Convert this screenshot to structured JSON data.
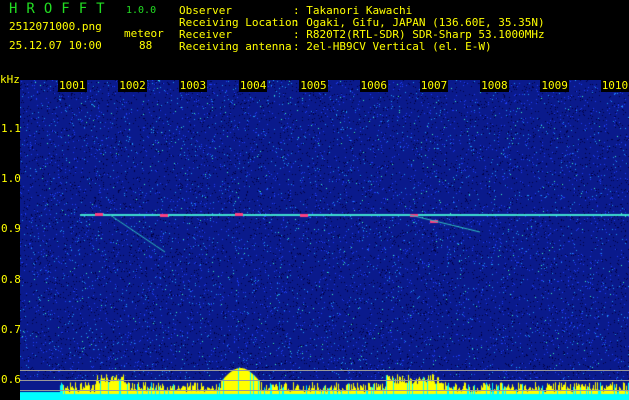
{
  "app": {
    "title": "HROFFT",
    "version": "1.0.0"
  },
  "file": {
    "name": "2512071000.png",
    "datetime": "25.12.07 10:00"
  },
  "meteor": {
    "label": "meteor",
    "count": "88"
  },
  "info": [
    {
      "label": "Observer",
      "value": ": Takanori Kawachi"
    },
    {
      "label": "Receiving Location",
      "value": ": Ogaki, Gifu, JAPAN (136.60E, 35.35N)"
    },
    {
      "label": "Receiver",
      "value": ": R820T2(RTL-SDR) SDR-Sharp 53.1000MHz"
    },
    {
      "label": "Receiving antenna",
      "value": ": 2el-HB9CV Vertical (el. E-W)"
    }
  ],
  "spectrogram": {
    "y_unit": "kHz",
    "x_ticks": [
      "1001",
      "1002",
      "1003",
      "1004",
      "1005",
      "1006",
      "1007",
      "1008",
      "1009",
      "1010"
    ],
    "y_ticks": [
      "1.1",
      "1.0",
      "0.9",
      "0.8",
      "0.7",
      "0.6"
    ],
    "colors": {
      "background": "#0a1a8c",
      "trace": "#40e0d0",
      "histogram_peak": "#ffff00",
      "histogram_base": "#00ffff",
      "text": "#ffff00"
    }
  }
}
